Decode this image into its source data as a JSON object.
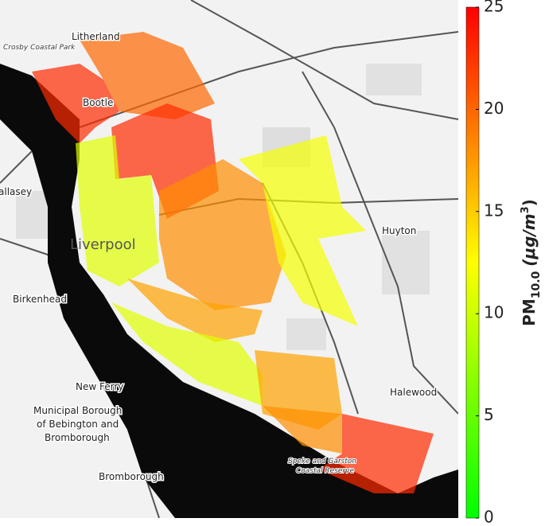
{
  "map": {
    "places": [
      "Litherland",
      "Crosby Coastal Park",
      "Bootle",
      "allasey",
      "Liverpool",
      "Huyton",
      "Birkenhead",
      "New Ferry",
      "Municipal Borough",
      "of Bebington and",
      "Bromborough",
      "Halewood",
      "Bromborough",
      "Speke and Garston",
      "Coastal Reserve"
    ],
    "zone_values": [
      23,
      20,
      23,
      11,
      18,
      12,
      17,
      11,
      17,
      18,
      23
    ]
  },
  "colorbar": {
    "label_base": "PM",
    "label_sub": "10.0",
    "label_unit": "(μg/m",
    "label_sup": "3",
    "label_close": ")",
    "lim": [
      0,
      25
    ],
    "ticks": [
      0,
      5,
      10,
      15,
      20,
      25
    ],
    "colors": [
      "#00ff00",
      "#ffff00",
      "#ff0000"
    ]
  }
}
